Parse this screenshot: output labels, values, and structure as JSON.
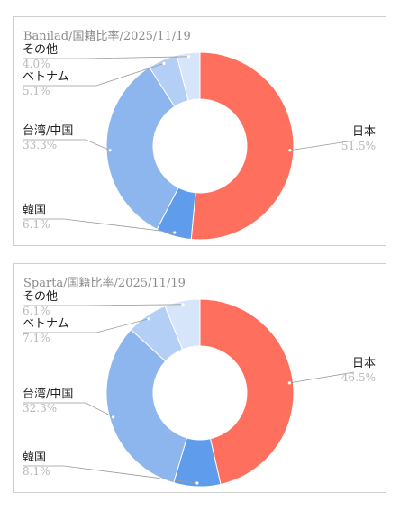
{
  "chart_data": [
    {
      "type": "pie",
      "title": "Banilad/国籍比率/2025/11/19",
      "slices": [
        {
          "label": "日本",
          "value": 51.5,
          "value_label": "51.5%",
          "color": "#ff6f5e"
        },
        {
          "label": "韓国",
          "value": 6.1,
          "value_label": "6.1%",
          "color": "#5f9cec"
        },
        {
          "label": "台湾/中国",
          "value": 33.3,
          "value_label": "33.3%",
          "color": "#8db6ef"
        },
        {
          "label": "ベトナム",
          "value": 5.1,
          "value_label": "5.1%",
          "color": "#b4cff6"
        },
        {
          "label": "その他",
          "value": 4.0,
          "value_label": "4.0%",
          "color": "#d7e5fb"
        }
      ]
    },
    {
      "type": "pie",
      "title": "Sparta/国籍比率/2025/11/19",
      "slices": [
        {
          "label": "日本",
          "value": 46.5,
          "value_label": "46.5%",
          "color": "#ff6f5e"
        },
        {
          "label": "韓国",
          "value": 8.1,
          "value_label": "8.1%",
          "color": "#5f9cec"
        },
        {
          "label": "台湾/中国",
          "value": 32.3,
          "value_label": "32.3%",
          "color": "#8db6ef"
        },
        {
          "label": "ベトナム",
          "value": 7.1,
          "value_label": "7.1%",
          "color": "#b4cff6"
        },
        {
          "label": "その他",
          "value": 6.1,
          "value_label": "6.1%",
          "color": "#d7e5fb"
        }
      ]
    }
  ]
}
